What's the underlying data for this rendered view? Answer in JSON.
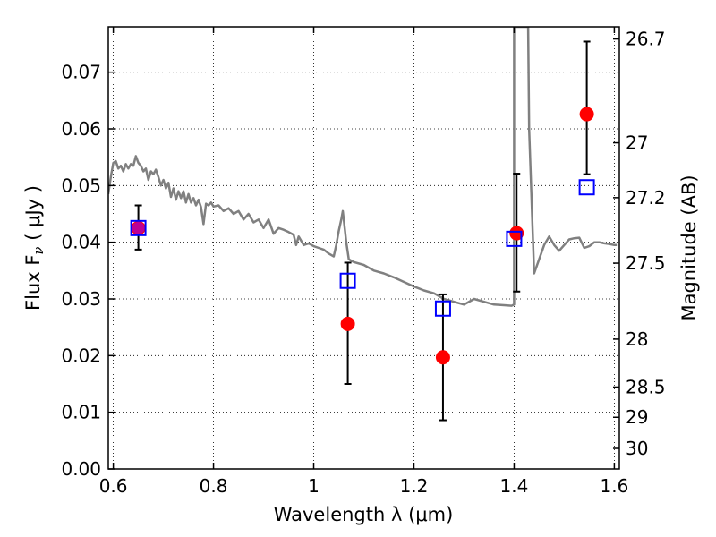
{
  "chart_data": {
    "type": "scatter",
    "title": "",
    "xlabel": "Wavelength  λ (μm)",
    "ylabel": "Flux  F",
    "ylabel_sub": "ν",
    "ylabel_units": " ( μJy )",
    "y2label": "Magnitude (AB)",
    "xlim": [
      0.59,
      1.61
    ],
    "ylim": [
      0.0,
      0.078
    ],
    "grid": true,
    "x_ticks": [
      0.6,
      0.8,
      1.0,
      1.2,
      1.4,
      1.6
    ],
    "x_tick_labels": [
      "0.6",
      "0.8",
      "1",
      "1.2",
      "1.4",
      "1.6"
    ],
    "y_ticks": [
      0.0,
      0.01,
      0.02,
      0.03,
      0.04,
      0.05,
      0.06,
      0.07
    ],
    "y_tick_labels": [
      "0.00",
      "0.01",
      "0.02",
      "0.03",
      "0.04",
      "0.05",
      "0.06",
      "0.07"
    ],
    "y2_ticks": [
      {
        "label": "26.7",
        "mag": 26.7
      },
      {
        "label": "27",
        "mag": 27.0
      },
      {
        "label": "27.2",
        "mag": 27.2
      },
      {
        "label": "27.5",
        "mag": 27.5
      },
      {
        "label": "28",
        "mag": 28.0
      },
      {
        "label": "28.5",
        "mag": 28.5
      },
      {
        "label": "29",
        "mag": 29.0
      },
      {
        "label": "30",
        "mag": 30.0
      }
    ],
    "series": [
      {
        "type": "line",
        "color": "#808080",
        "x": [
          0.59,
          0.595,
          0.6,
          0.605,
          0.61,
          0.615,
          0.62,
          0.625,
          0.63,
          0.635,
          0.64,
          0.645,
          0.65,
          0.655,
          0.66,
          0.665,
          0.67,
          0.675,
          0.68,
          0.685,
          0.69,
          0.695,
          0.7,
          0.705,
          0.71,
          0.715,
          0.72,
          0.725,
          0.73,
          0.735,
          0.74,
          0.745,
          0.75,
          0.755,
          0.76,
          0.765,
          0.77,
          0.775,
          0.78,
          0.785,
          0.79,
          0.795,
          0.8,
          0.81,
          0.82,
          0.83,
          0.84,
          0.85,
          0.86,
          0.87,
          0.88,
          0.89,
          0.9,
          0.91,
          0.92,
          0.93,
          0.94,
          0.95,
          0.96,
          0.965,
          0.97,
          0.98,
          0.99,
          1.0,
          1.01,
          1.02,
          1.03,
          1.04,
          1.045,
          1.05,
          1.055,
          1.058,
          1.06,
          1.065,
          1.07,
          1.08,
          1.1,
          1.12,
          1.14,
          1.16,
          1.18,
          1.2,
          1.22,
          1.24,
          1.26,
          1.28,
          1.3,
          1.32,
          1.34,
          1.36,
          1.38,
          1.395,
          1.4,
          1.4,
          1.402,
          1.404,
          1.406,
          1.408,
          1.41,
          1.415,
          1.42,
          1.425,
          1.428,
          1.43,
          1.44,
          1.45,
          1.46,
          1.47,
          1.48,
          1.49,
          1.5,
          1.51,
          1.52,
          1.53,
          1.54,
          1.55,
          1.56,
          1.57,
          1.58,
          1.59,
          1.6,
          1.605
        ],
        "y": [
          0.0485,
          0.0515,
          0.054,
          0.0543,
          0.053,
          0.0535,
          0.0525,
          0.0538,
          0.053,
          0.0538,
          0.0535,
          0.0552,
          0.054,
          0.0535,
          0.0525,
          0.053,
          0.051,
          0.0525,
          0.052,
          0.0528,
          0.0515,
          0.05,
          0.051,
          0.0495,
          0.0505,
          0.048,
          0.0495,
          0.0475,
          0.049,
          0.0478,
          0.049,
          0.047,
          0.0485,
          0.047,
          0.0478,
          0.0465,
          0.0475,
          0.0462,
          0.0432,
          0.0468,
          0.0465,
          0.047,
          0.0463,
          0.0465,
          0.0455,
          0.046,
          0.045,
          0.0455,
          0.044,
          0.045,
          0.0435,
          0.044,
          0.0425,
          0.044,
          0.0415,
          0.0425,
          0.0422,
          0.0418,
          0.0413,
          0.0395,
          0.041,
          0.0395,
          0.0398,
          0.0393,
          0.039,
          0.0387,
          0.038,
          0.0375,
          0.0395,
          0.042,
          0.044,
          0.0455,
          0.044,
          0.04,
          0.037,
          0.0365,
          0.036,
          0.035,
          0.0345,
          0.0338,
          0.033,
          0.0322,
          0.0315,
          0.031,
          0.03,
          0.0295,
          0.029,
          0.03,
          0.0295,
          0.029,
          0.0289,
          0.0288,
          0.029,
          0.078,
          0.078,
          0.078,
          0.078,
          0.078,
          0.078,
          0.078,
          0.078,
          0.078,
          0.078,
          0.06,
          0.0345,
          0.037,
          0.0395,
          0.041,
          0.0395,
          0.0385,
          0.0395,
          0.0405,
          0.0407,
          0.0408,
          0.039,
          0.0393,
          0.04,
          0.04,
          0.0398,
          0.0397,
          0.0395,
          0.0395
        ]
      },
      {
        "type": "errorbar",
        "marker": "circle",
        "color": "#ff0000",
        "x": [
          0.65,
          1.068,
          1.258,
          1.405,
          1.545
        ],
        "y": [
          0.0425,
          0.0256,
          0.0197,
          0.0416,
          0.0626
        ],
        "yerr_low": [
          0.0038,
          0.0106,
          0.0111,
          0.0103,
          0.0106
        ],
        "yerr_high": [
          0.004,
          0.0108,
          0.0111,
          0.0105,
          0.0128
        ]
      },
      {
        "type": "scatter",
        "marker": "square",
        "color": "#0000ff",
        "x": [
          0.65,
          1.068,
          1.258,
          1.4,
          1.545
        ],
        "y": [
          0.0425,
          0.0332,
          0.0283,
          0.0406,
          0.0497
        ]
      }
    ]
  }
}
